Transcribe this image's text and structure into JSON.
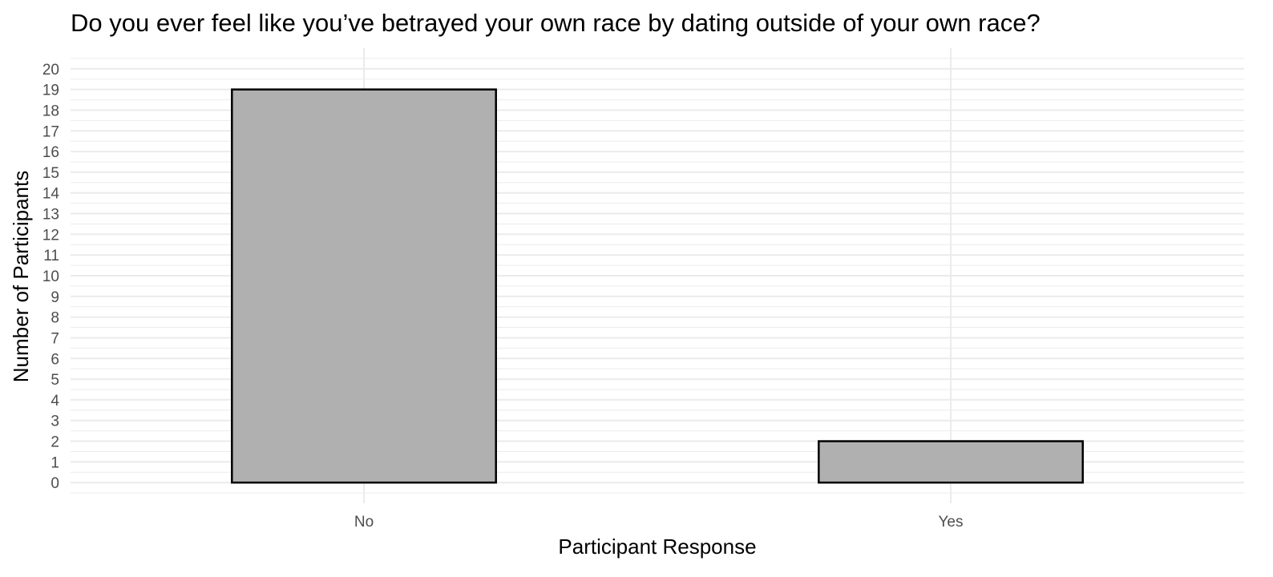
{
  "chart_data": {
    "type": "bar",
    "title": "Do you ever feel like you’ve betrayed your own race by dating outside of your own race?",
    "xlabel": "Participant Response",
    "ylabel": "Number of Participants",
    "categories": [
      "No",
      "Yes"
    ],
    "values": [
      19,
      2
    ],
    "ylim": [
      -1,
      21
    ],
    "yticks": [
      0,
      1,
      2,
      3,
      4,
      5,
      6,
      7,
      8,
      9,
      10,
      11,
      12,
      13,
      14,
      15,
      16,
      17,
      18,
      19,
      20
    ],
    "grid": true,
    "legend": "none",
    "bar_fill": "#b0b0b0",
    "bar_stroke": "#000000",
    "grid_color": "#ebebeb"
  }
}
